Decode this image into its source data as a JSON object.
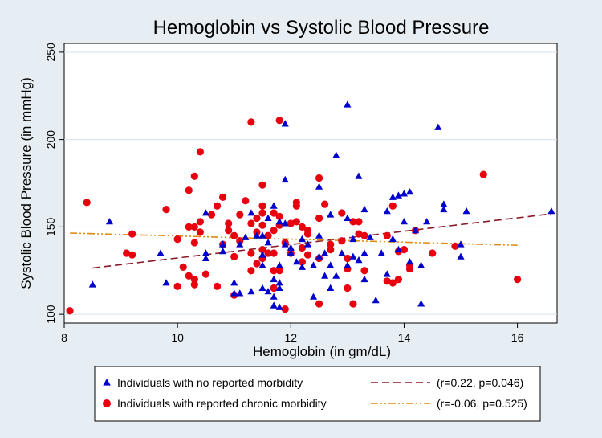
{
  "chart_data": {
    "type": "scatter",
    "title": "Hemoglobin vs Systolic Blood Pressure",
    "xlabel": "Hemoglobin (in gm/dL)",
    "ylabel": "Systolic Blood Pressure (in mmHg)",
    "xlim": [
      8,
      16.7
    ],
    "ylim": [
      95,
      255
    ],
    "xticks": [
      8,
      10,
      12,
      14,
      16
    ],
    "yticks": [
      100,
      150,
      200,
      250
    ],
    "grid": "horizontal",
    "legend_position": "bottom",
    "colors": {
      "background": "#e6eef3",
      "plot_background": "#ffffff",
      "no_morbidity": "#0000cc",
      "chronic_morbidity": "#e8000f",
      "trend_no_morbidity": "#8b1a2b",
      "trend_chronic": "#e08a12"
    },
    "series": [
      {
        "name": "Individuals with no reported morbidity",
        "marker": "triangle",
        "points": [
          [
            8.5,
            117
          ],
          [
            8.8,
            153
          ],
          [
            9.7,
            135
          ],
          [
            9.8,
            118
          ],
          [
            10.5,
            158
          ],
          [
            10.5,
            132
          ],
          [
            10.5,
            135
          ],
          [
            10.8,
            140
          ],
          [
            10.8,
            136
          ],
          [
            11.0,
            112
          ],
          [
            11.0,
            118
          ],
          [
            11.1,
            140
          ],
          [
            11.1,
            112
          ],
          [
            11.2,
            144
          ],
          [
            11.3,
            158
          ],
          [
            11.3,
            113
          ],
          [
            11.4,
            145
          ],
          [
            11.5,
            115
          ],
          [
            11.5,
            128
          ],
          [
            11.5,
            134
          ],
          [
            11.5,
            145
          ],
          [
            11.6,
            141
          ],
          [
            11.6,
            113
          ],
          [
            11.6,
            155
          ],
          [
            11.7,
            105
          ],
          [
            11.7,
            110
          ],
          [
            11.7,
            120
          ],
          [
            11.7,
            162
          ],
          [
            11.8,
            104
          ],
          [
            11.8,
            118
          ],
          [
            11.8,
            115
          ],
          [
            11.8,
            128
          ],
          [
            11.8,
            153
          ],
          [
            11.9,
            209
          ],
          [
            11.9,
            177
          ],
          [
            11.9,
            152
          ],
          [
            11.9,
            140
          ],
          [
            12.0,
            138
          ],
          [
            12.0,
            135
          ],
          [
            12.1,
            130
          ],
          [
            12.2,
            143
          ],
          [
            12.2,
            127
          ],
          [
            12.3,
            140
          ],
          [
            12.4,
            110
          ],
          [
            12.4,
            128
          ],
          [
            12.5,
            173
          ],
          [
            12.5,
            145
          ],
          [
            12.5,
            133
          ],
          [
            12.6,
            122
          ],
          [
            12.6,
            135
          ],
          [
            12.7,
            157
          ],
          [
            12.7,
            128
          ],
          [
            12.7,
            115
          ],
          [
            12.8,
            191
          ],
          [
            12.8,
            122
          ],
          [
            12.9,
            135
          ],
          [
            13.0,
            220
          ],
          [
            13.0,
            155
          ],
          [
            13.0,
            128
          ],
          [
            13.1,
            143
          ],
          [
            13.1,
            133
          ],
          [
            13.2,
            179
          ],
          [
            13.2,
            131
          ],
          [
            13.3,
            135
          ],
          [
            13.3,
            160
          ],
          [
            13.3,
            120
          ],
          [
            13.4,
            144
          ],
          [
            13.5,
            108
          ],
          [
            13.6,
            135
          ],
          [
            13.7,
            159
          ],
          [
            13.7,
            123
          ],
          [
            13.8,
            167
          ],
          [
            13.8,
            143
          ],
          [
            13.9,
            168
          ],
          [
            13.9,
            137
          ],
          [
            14.0,
            153
          ],
          [
            14.0,
            169
          ],
          [
            14.1,
            170
          ],
          [
            14.1,
            130
          ],
          [
            14.2,
            148
          ],
          [
            14.3,
            106
          ],
          [
            14.3,
            128
          ],
          [
            14.4,
            153
          ],
          [
            14.6,
            207
          ],
          [
            14.7,
            160
          ],
          [
            14.7,
            163
          ],
          [
            15.0,
            140
          ],
          [
            15.0,
            133
          ],
          [
            15.1,
            159
          ],
          [
            16.6,
            159
          ]
        ]
      },
      {
        "name": "Individuals with reported chronic morbidity",
        "marker": "circle",
        "points": [
          [
            8.1,
            102
          ],
          [
            8.4,
            164
          ],
          [
            9.1,
            135
          ],
          [
            9.2,
            146
          ],
          [
            9.2,
            134
          ],
          [
            9.8,
            160
          ],
          [
            10.0,
            116
          ],
          [
            10.0,
            143
          ],
          [
            10.1,
            127
          ],
          [
            10.2,
            171
          ],
          [
            10.2,
            150
          ],
          [
            10.2,
            122
          ],
          [
            10.3,
            179
          ],
          [
            10.3,
            150
          ],
          [
            10.3,
            141
          ],
          [
            10.3,
            120
          ],
          [
            10.3,
            117
          ],
          [
            10.4,
            193
          ],
          [
            10.4,
            153
          ],
          [
            10.4,
            147
          ],
          [
            10.5,
            123
          ],
          [
            10.6,
            157
          ],
          [
            10.7,
            162
          ],
          [
            10.7,
            116
          ],
          [
            10.8,
            167
          ],
          [
            10.8,
            140
          ],
          [
            10.9,
            152
          ],
          [
            10.9,
            148
          ],
          [
            11.0,
            145
          ],
          [
            11.0,
            133
          ],
          [
            11.0,
            111
          ],
          [
            11.1,
            157
          ],
          [
            11.1,
            142
          ],
          [
            11.2,
            165
          ],
          [
            11.3,
            210
          ],
          [
            11.3,
            152
          ],
          [
            11.3,
            135
          ],
          [
            11.3,
            125
          ],
          [
            11.4,
            155
          ],
          [
            11.4,
            147
          ],
          [
            11.4,
            129
          ],
          [
            11.5,
            174
          ],
          [
            11.5,
            162
          ],
          [
            11.5,
            158
          ],
          [
            11.5,
            151
          ],
          [
            11.5,
            137
          ],
          [
            11.5,
            132
          ],
          [
            11.6,
            145
          ],
          [
            11.6,
            135
          ],
          [
            11.7,
            158
          ],
          [
            11.7,
            148
          ],
          [
            11.7,
            135
          ],
          [
            11.7,
            125
          ],
          [
            11.7,
            115
          ],
          [
            11.8,
            211
          ],
          [
            11.8,
            156
          ],
          [
            11.8,
            151
          ],
          [
            11.8,
            125
          ],
          [
            11.9,
            141
          ],
          [
            11.9,
            103
          ],
          [
            12.0,
            152
          ],
          [
            12.0,
            135
          ],
          [
            12.1,
            164
          ],
          [
            12.1,
            162
          ],
          [
            12.1,
            153
          ],
          [
            12.2,
            150
          ],
          [
            12.2,
            138
          ],
          [
            12.2,
            130
          ],
          [
            12.3,
            148
          ],
          [
            12.3,
            146
          ],
          [
            12.3,
            134
          ],
          [
            12.5,
            178
          ],
          [
            12.5,
            155
          ],
          [
            12.5,
            132
          ],
          [
            12.5,
            106
          ],
          [
            12.6,
            163
          ],
          [
            12.7,
            140
          ],
          [
            12.7,
            137
          ],
          [
            12.9,
            158
          ],
          [
            12.9,
            142
          ],
          [
            13.0,
            132
          ],
          [
            13.0,
            126
          ],
          [
            13.0,
            115
          ],
          [
            13.1,
            106
          ],
          [
            13.1,
            153
          ],
          [
            13.2,
            153
          ],
          [
            13.2,
            146
          ],
          [
            13.3,
            145
          ],
          [
            13.3,
            125
          ],
          [
            13.7,
            145
          ],
          [
            13.7,
            119
          ],
          [
            13.8,
            162
          ],
          [
            13.8,
            118
          ],
          [
            13.9,
            120
          ],
          [
            13.9,
            136
          ],
          [
            14.0,
            137
          ],
          [
            14.1,
            126
          ],
          [
            14.1,
            128
          ],
          [
            14.2,
            148
          ],
          [
            14.5,
            135
          ],
          [
            14.9,
            139
          ],
          [
            15.4,
            180
          ],
          [
            16.0,
            120
          ]
        ]
      }
    ],
    "trend_lines": [
      {
        "name": "(r=0.22, p=0.046)",
        "style": "dashed",
        "x": [
          8.5,
          16.6
        ],
        "y": [
          126.5,
          157.5
        ]
      },
      {
        "name": "(r=-0.06, p=0.525)",
        "style": "dash-dot",
        "x": [
          8.1,
          16.0
        ],
        "y": [
          146.5,
          139.5
        ]
      }
    ]
  }
}
